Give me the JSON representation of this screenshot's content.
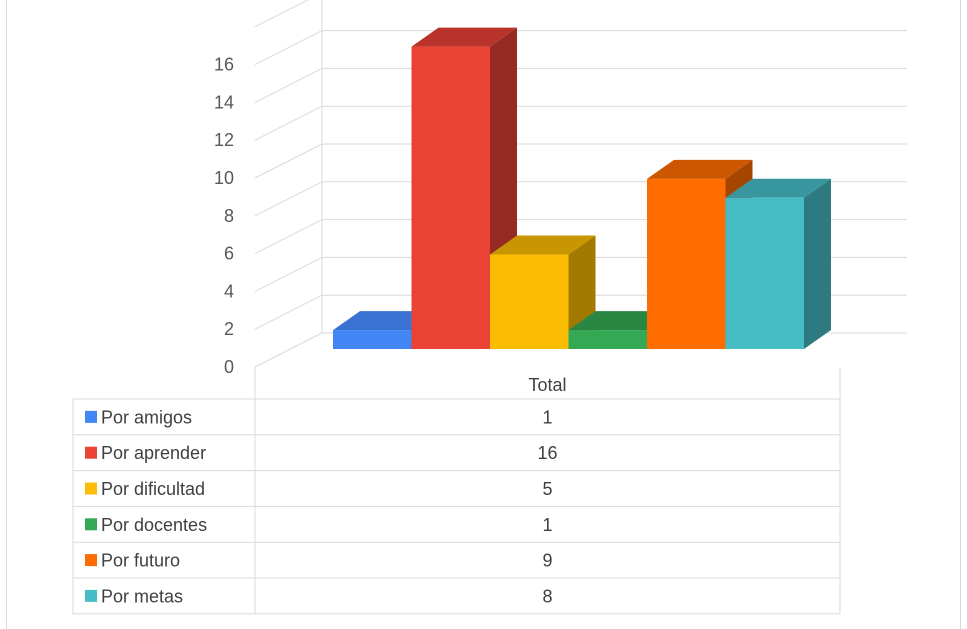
{
  "chart_data": {
    "type": "bar",
    "categories": [
      "Total"
    ],
    "series": [
      {
        "name": "Por amigos",
        "values": [
          1
        ],
        "color": "#4285F4",
        "top": "#3A72D4",
        "side": "#2D5CB0"
      },
      {
        "name": "Por aprender",
        "values": [
          16
        ],
        "color": "#EA4335",
        "top": "#B8342B",
        "side": "#962A22"
      },
      {
        "name": "Por dificultad",
        "values": [
          5
        ],
        "color": "#FBBC04",
        "top": "#C89600",
        "side": "#A37A00"
      },
      {
        "name": "Por docentes",
        "values": [
          1
        ],
        "color": "#34A853",
        "top": "#2A8643",
        "side": "#216A35"
      },
      {
        "name": "Por futuro",
        "values": [
          9
        ],
        "color": "#FF6D01",
        "top": "#CC5700",
        "side": "#A54600"
      },
      {
        "name": "Por metas",
        "values": [
          8
        ],
        "color": "#46BDC6",
        "top": "#38979E",
        "side": "#2D7A80"
      }
    ],
    "y_ticks": [
      "0",
      "2",
      "4",
      "6",
      "8",
      "10",
      "12",
      "14",
      "16"
    ],
    "ylim": [
      0,
      18
    ],
    "grid": true,
    "legend": "data-table",
    "data_table": {
      "header": "Total",
      "rows": [
        {
          "label": "Por amigos",
          "value": "1"
        },
        {
          "label": "Por aprender",
          "value": "16"
        },
        {
          "label": "Por dificultad",
          "value": "5"
        },
        {
          "label": "Por docentes",
          "value": "1"
        },
        {
          "label": "Por futuro",
          "value": "9"
        },
        {
          "label": "Por metas",
          "value": "8"
        }
      ]
    }
  }
}
